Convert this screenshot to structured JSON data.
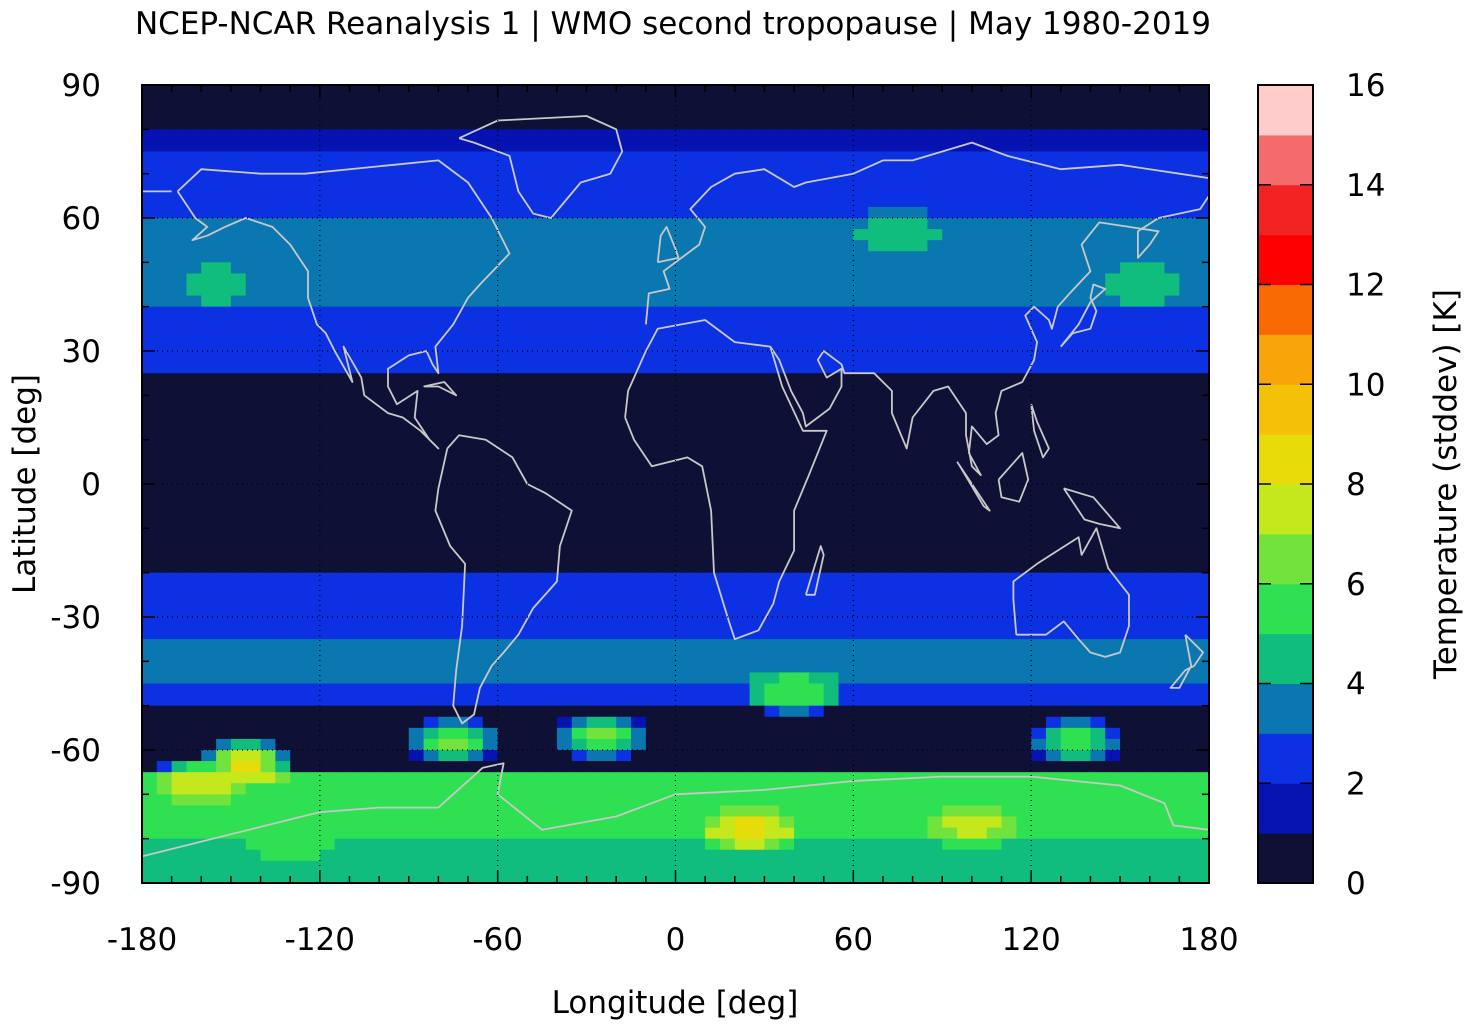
{
  "chart_data": {
    "type": "heatmap",
    "title": "NCEP-NCAR Reanalysis 1 | WMO second tropopause | May 1980-2019",
    "xlabel": "Longitude [deg]",
    "ylabel": "Latitude [deg]",
    "colorbar_label": "Temperature (stddev) [K]",
    "xlim": [
      -180,
      180
    ],
    "ylim": [
      -90,
      90
    ],
    "xticks": [
      "-180",
      "-120",
      "-60",
      "0",
      "60",
      "120",
      "180"
    ],
    "yticks": [
      "90",
      "60",
      "30",
      "0",
      "-30",
      "-60",
      "-90"
    ],
    "colorbar_ticks": [
      "16",
      "14",
      "12",
      "10",
      "8",
      "6",
      "4",
      "2",
      "0"
    ],
    "colorbar_range": [
      0,
      16
    ],
    "colorbar_step": 1,
    "colorbar_colors": [
      "#0f1035",
      "#0613b0",
      "#0c31e3",
      "#0a77b0",
      "#10bd7d",
      "#2fe152",
      "#72e23c",
      "#c4e81b",
      "#e7dc0a",
      "#f3c208",
      "#f9a509",
      "#fa6a04",
      "#ff0000",
      "#f12323",
      "#f56a6a",
      "#ffcccc"
    ],
    "grid": "dotted",
    "coastlines": true,
    "zonal_profile": [
      {
        "lat": 87.5,
        "value": 0.5
      },
      {
        "lat": 82.5,
        "value": 0.5
      },
      {
        "lat": 77.5,
        "value": 1.5
      },
      {
        "lat": 72.5,
        "value": 2.5
      },
      {
        "lat": 67.5,
        "value": 2.5
      },
      {
        "lat": 62.5,
        "value": 2.5
      },
      {
        "lat": 57.5,
        "value": 3.5
      },
      {
        "lat": 52.5,
        "value": 3.5
      },
      {
        "lat": 47.5,
        "value": 3.5
      },
      {
        "lat": 42.5,
        "value": 3.5
      },
      {
        "lat": 37.5,
        "value": 2.5
      },
      {
        "lat": 32.5,
        "value": 2.5
      },
      {
        "lat": 27.5,
        "value": 2.5
      },
      {
        "lat": 22.5,
        "value": 0.5
      },
      {
        "lat": 17.5,
        "value": 0.5
      },
      {
        "lat": 12.5,
        "value": 0.5
      },
      {
        "lat": 7.5,
        "value": 0.5
      },
      {
        "lat": 2.5,
        "value": 0.5
      },
      {
        "lat": -2.5,
        "value": 0.5
      },
      {
        "lat": -7.5,
        "value": 0.5
      },
      {
        "lat": -12.5,
        "value": 0.5
      },
      {
        "lat": -17.5,
        "value": 0.5
      },
      {
        "lat": -22.5,
        "value": 2.5
      },
      {
        "lat": -27.5,
        "value": 2.5
      },
      {
        "lat": -32.5,
        "value": 2.5
      },
      {
        "lat": -37.5,
        "value": 3.5
      },
      {
        "lat": -42.5,
        "value": 3.5
      },
      {
        "lat": -47.5,
        "value": 2.5
      },
      {
        "lat": -52.5,
        "value": 0.5
      },
      {
        "lat": -57.5,
        "value": 0.5
      },
      {
        "lat": -62.5,
        "value": 0.5
      },
      {
        "lat": -67.5,
        "value": 5.5
      },
      {
        "lat": -72.5,
        "value": 5.5
      },
      {
        "lat": -77.5,
        "value": 5.5
      },
      {
        "lat": -82.5,
        "value": 4.5
      },
      {
        "lat": -87.5,
        "value": 4.5
      }
    ],
    "features": [
      {
        "lon": -155,
        "lat": 45,
        "value": 4.5
      },
      {
        "lon": 75,
        "lat": 57,
        "value": 4.5
      },
      {
        "lon": 158,
        "lat": 45,
        "value": 4.5
      },
      {
        "lon": -145,
        "lat": -63,
        "value": 8.5
      },
      {
        "lon": -160,
        "lat": -67,
        "value": 8
      },
      {
        "lon": -75,
        "lat": -58,
        "value": 6.5
      },
      {
        "lon": -25,
        "lat": -57,
        "value": 6.5
      },
      {
        "lon": 40,
        "lat": -47,
        "value": 6
      },
      {
        "lon": 135,
        "lat": -58,
        "value": 6
      },
      {
        "lon": 25,
        "lat": -78,
        "value": 8.5
      },
      {
        "lon": 100,
        "lat": -77,
        "value": 7.5
      },
      {
        "lon": -130,
        "lat": -82,
        "value": 5.5
      }
    ]
  }
}
